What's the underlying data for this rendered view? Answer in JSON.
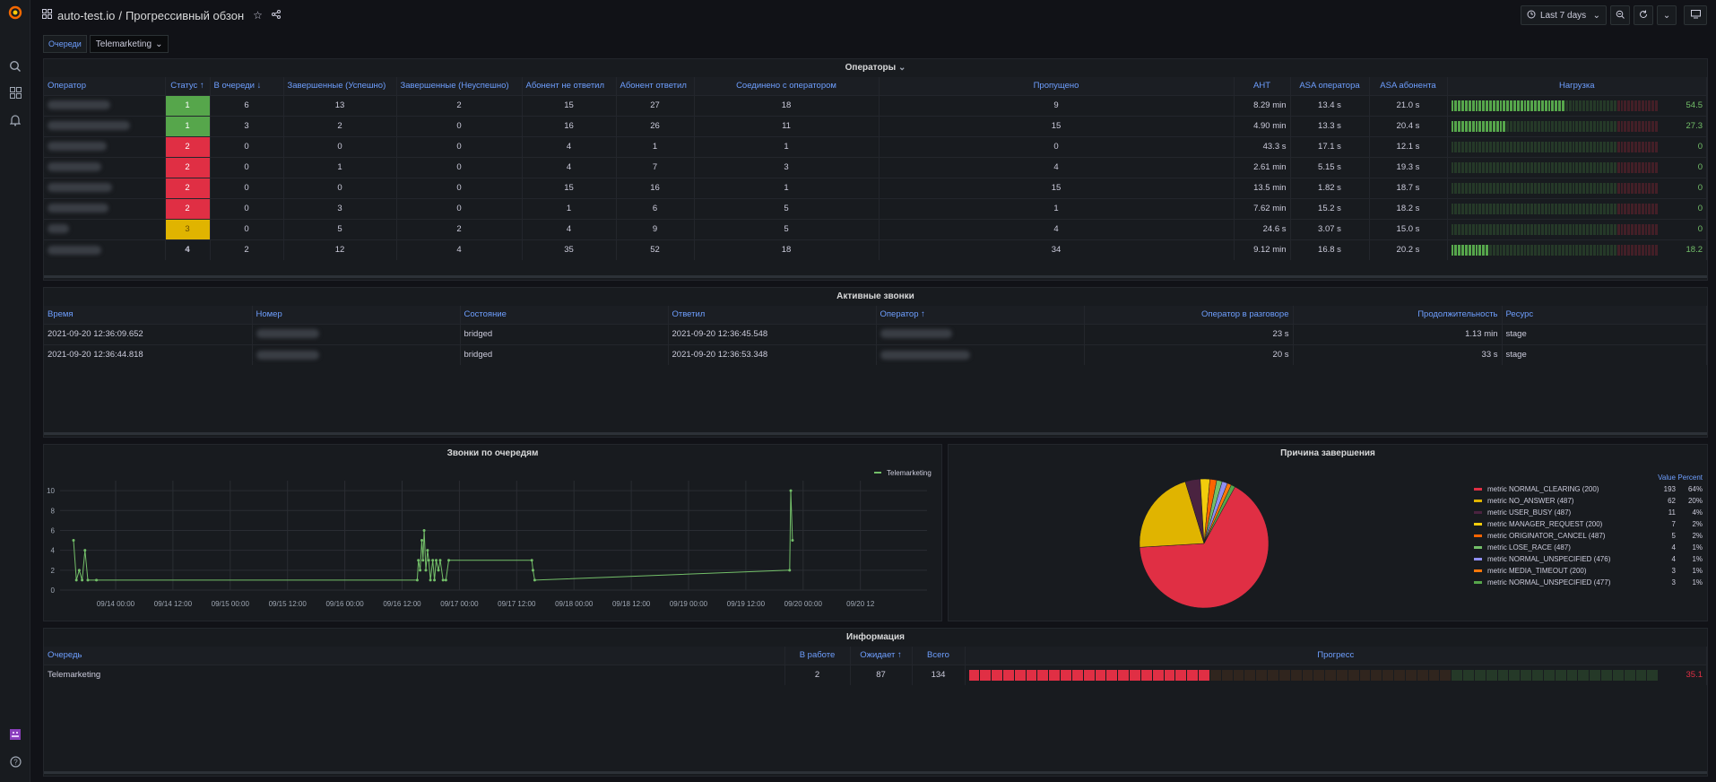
{
  "app": {
    "folder": "auto-test.io",
    "separator": "/",
    "dashboard": "Прогрессивный обзон",
    "time_range": "Last 7 days"
  },
  "variables": {
    "queue_label": "Очереди",
    "queue_value": "Telemarketing"
  },
  "operators": {
    "title": "Операторы",
    "headers": [
      "Оператор",
      "Статус ↑",
      "В очереди ↓",
      "Завершенные (Успешно)",
      "Завершенные (Неуспешно)",
      "Абонент не ответил",
      "Абонент ответил",
      "Соединено с оператором",
      "Пропущено",
      "AHT",
      "ASA оператора",
      "ASA абонента",
      "Нагрузка"
    ],
    "rows": [
      {
        "status": "1",
        "color": "green",
        "queue": "6",
        "ok": "13",
        "fail": "2",
        "no_ans": "15",
        "ans": "27",
        "conn": "18",
        "missed": "9",
        "aht": "8.29 min",
        "asa_op": "13.4 s",
        "asa_sub": "21.0 s",
        "load": "54.5",
        "load_pct": 0.55
      },
      {
        "status": "1",
        "color": "green",
        "queue": "3",
        "ok": "2",
        "fail": "0",
        "no_ans": "16",
        "ans": "26",
        "conn": "11",
        "missed": "15",
        "aht": "4.90 min",
        "asa_op": "13.3 s",
        "asa_sub": "20.4 s",
        "load": "27.3",
        "load_pct": 0.27
      },
      {
        "status": "2",
        "color": "red",
        "queue": "0",
        "ok": "0",
        "fail": "0",
        "no_ans": "4",
        "ans": "1",
        "conn": "1",
        "missed": "0",
        "aht": "43.3 s",
        "asa_op": "17.1 s",
        "asa_sub": "12.1 s",
        "load": "0",
        "load_pct": 0
      },
      {
        "status": "2",
        "color": "red",
        "queue": "0",
        "ok": "1",
        "fail": "0",
        "no_ans": "4",
        "ans": "7",
        "conn": "3",
        "missed": "4",
        "aht": "2.61 min",
        "asa_op": "5.15 s",
        "asa_sub": "19.3 s",
        "load": "0",
        "load_pct": 0
      },
      {
        "status": "2",
        "color": "red",
        "queue": "0",
        "ok": "0",
        "fail": "0",
        "no_ans": "15",
        "ans": "16",
        "conn": "1",
        "missed": "15",
        "aht": "13.5 min",
        "asa_op": "1.82 s",
        "asa_sub": "18.7 s",
        "load": "0",
        "load_pct": 0
      },
      {
        "status": "2",
        "color": "red",
        "queue": "0",
        "ok": "3",
        "fail": "0",
        "no_ans": "1",
        "ans": "6",
        "conn": "5",
        "missed": "1",
        "aht": "7.62 min",
        "asa_op": "15.2 s",
        "asa_sub": "18.2 s",
        "load": "0",
        "load_pct": 0
      },
      {
        "status": "3",
        "color": "yellow",
        "queue": "0",
        "ok": "5",
        "fail": "2",
        "no_ans": "4",
        "ans": "9",
        "conn": "5",
        "missed": "4",
        "aht": "24.6 s",
        "asa_op": "3.07 s",
        "asa_sub": "15.0 s",
        "load": "0",
        "load_pct": 0
      },
      {
        "status": "4",
        "color": "none",
        "queue": "2",
        "ok": "12",
        "fail": "4",
        "no_ans": "35",
        "ans": "52",
        "conn": "18",
        "missed": "34",
        "aht": "9.12 min",
        "asa_op": "16.8 s",
        "asa_sub": "20.2 s",
        "load": "18.2",
        "load_pct": 0.18
      }
    ]
  },
  "calls": {
    "title": "Активные звонки",
    "headers": [
      "Время",
      "Номер",
      "Состояние",
      "Ответил",
      "Оператор ↑",
      "Оператор в разговоре",
      "Продолжительность",
      "Ресурс"
    ],
    "rows": [
      {
        "time": "2021-09-20 12:36:09.652",
        "state": "bridged",
        "answered": "2021-09-20 12:36:45.548",
        "talk": "23 s",
        "dur": "1.13 min",
        "res": "stage"
      },
      {
        "time": "2021-09-20 12:36:44.818",
        "state": "bridged",
        "answered": "2021-09-20 12:36:53.348",
        "talk": "20 s",
        "dur": "33 s",
        "res": "stage"
      }
    ]
  },
  "queue_chart": {
    "title": "Звонки по очередям",
    "chart_data": {
      "type": "line",
      "x_ticks": [
        "09/14 00:00",
        "09/14 12:00",
        "09/15 00:00",
        "09/15 12:00",
        "09/16 00:00",
        "09/16 12:00",
        "09/17 00:00",
        "09/17 12:00",
        "09/18 00:00",
        "09/18 12:00",
        "09/19 00:00",
        "09/19 12:00",
        "09/20 00:00",
        "09/20 12"
      ],
      "y_ticks": [
        "0",
        "2",
        "4",
        "6",
        "8",
        "10"
      ],
      "ylim": [
        0,
        11
      ],
      "series": [
        {
          "name": "Telemarketing",
          "color": "#73bf69",
          "points": [
            [
              0.0,
              5
            ],
            [
              0.05,
              1
            ],
            [
              0.1,
              2
            ],
            [
              0.15,
              1
            ],
            [
              0.2,
              4
            ],
            [
              0.25,
              1
            ],
            [
              0.4,
              1
            ],
            [
              6.0,
              1
            ],
            [
              6.02,
              3
            ],
            [
              6.05,
              2
            ],
            [
              6.08,
              5
            ],
            [
              6.1,
              3
            ],
            [
              6.12,
              6
            ],
            [
              6.15,
              2
            ],
            [
              6.18,
              4
            ],
            [
              6.2,
              3
            ],
            [
              6.23,
              1
            ],
            [
              6.27,
              3
            ],
            [
              6.3,
              1
            ],
            [
              6.33,
              3
            ],
            [
              6.37,
              2
            ],
            [
              6.4,
              3
            ],
            [
              6.45,
              1
            ],
            [
              6.5,
              1
            ],
            [
              6.55,
              3
            ],
            [
              8.0,
              3
            ],
            [
              8.02,
              2
            ],
            [
              8.05,
              1
            ],
            [
              12.5,
              2
            ],
            [
              12.52,
              10
            ],
            [
              12.55,
              5
            ]
          ]
        }
      ]
    }
  },
  "reason_chart": {
    "title": "Причина завершения",
    "chart_data": {
      "type": "pie",
      "legend_headers": [
        "Value",
        "Percent"
      ],
      "slices": [
        {
          "label": "metric NORMAL_CLEARING (200)",
          "value": 193,
          "percent": "64%",
          "color": "#e02f44"
        },
        {
          "label": "metric NO_ANSWER (487)",
          "value": 62,
          "percent": "20%",
          "color": "#e0b400"
        },
        {
          "label": "metric USER_BUSY (487)",
          "value": 11,
          "percent": "4%",
          "color": "#4a2340"
        },
        {
          "label": "metric MANAGER_REQUEST (200)",
          "value": 7,
          "percent": "2%",
          "color": "#f2cc0c"
        },
        {
          "label": "metric ORIGINATOR_CANCEL (487)",
          "value": 5,
          "percent": "2%",
          "color": "#fa6400"
        },
        {
          "label": "metric LOSE_RACE (487)",
          "value": 4,
          "percent": "1%",
          "color": "#73bf69"
        },
        {
          "label": "metric NORMAL_UNSPECIFIED (476)",
          "value": 4,
          "percent": "1%",
          "color": "#8f8ff2"
        },
        {
          "label": "metric MEDIA_TIMEOUT (200)",
          "value": 3,
          "percent": "1%",
          "color": "#ff780a"
        },
        {
          "label": "metric NORMAL_UNSPECIFIED (477)",
          "value": 3,
          "percent": "1%",
          "color": "#56a64b"
        }
      ]
    }
  },
  "info": {
    "title": "Информация",
    "headers": [
      "Очередь",
      "В работе",
      "Ожидает ↑",
      "Всего",
      "Прогресс"
    ],
    "row": {
      "queue": "Telemarketing",
      "work": "2",
      "wait": "87",
      "total": "134",
      "progress": "35.1",
      "progress_pct": 0.351
    }
  }
}
